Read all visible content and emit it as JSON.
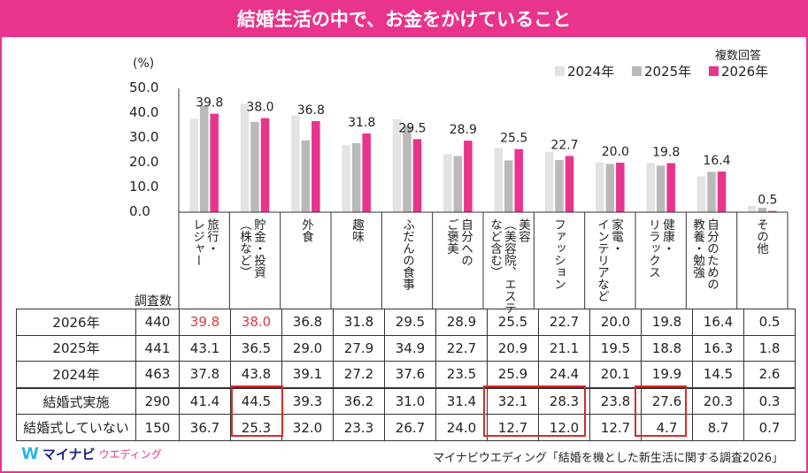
{
  "title": "結婚生活の中で、お金をかけていること",
  "unit_label": "(%)",
  "multiple_answer_note": "複数回答",
  "sample_header": "調査数",
  "colors": {
    "brand": "#e8348c",
    "y2024": "#e3e3e3",
    "y2025": "#b9b9b9",
    "y2026": "#e8348c",
    "highlight": "#d82b2b"
  },
  "chart_data": {
    "type": "bar",
    "title": "結婚生活の中で、お金をかけていること",
    "ylabel": "(%)",
    "ylim": [
      0,
      50
    ],
    "yticks": [
      "50.0",
      "40.0",
      "30.0",
      "20.0",
      "10.0",
      "0.0"
    ],
    "categories": [
      "旅行・レジャー",
      "貯金・投資（株など）",
      "外食",
      "趣味",
      "ふだんの食事",
      "自分へのご褒美",
      "美容（美容院、エステなど含む）",
      "ファッション",
      "家電・インテリアなど",
      "健康・リラックス",
      "自分のための教養・勉強",
      "その他"
    ],
    "series": [
      {
        "name": "2024年",
        "values": [
          37.8,
          43.8,
          39.1,
          27.2,
          37.6,
          23.5,
          25.9,
          24.4,
          20.1,
          19.9,
          14.5,
          2.6
        ]
      },
      {
        "name": "2025年",
        "values": [
          43.1,
          36.5,
          29.0,
          27.9,
          34.9,
          22.7,
          20.9,
          21.1,
          19.5,
          18.8,
          16.3,
          1.8
        ]
      },
      {
        "name": "2026年",
        "values": [
          39.8,
          38.0,
          36.8,
          31.8,
          29.5,
          28.9,
          25.5,
          22.7,
          20.0,
          19.8,
          16.4,
          0.5
        ]
      }
    ],
    "data_labels": [
      "39.8",
      "38.0",
      "36.8",
      "31.8",
      "29.5",
      "28.9",
      "25.5",
      "22.7",
      "20.0",
      "19.8",
      "16.4",
      "0.5"
    ],
    "legend": [
      "2024年",
      "2025年",
      "2026年"
    ]
  },
  "column_headers": [
    "旅行・\nレジャー",
    "貯金・投資\n（株など）",
    "外食",
    "趣味",
    "ふだんの食事",
    "自分への\nご褒美",
    "美容\n（美容院、エステ\nなど含む）",
    "ファッション",
    "家電・\nインテリアなど",
    "健康・\nリラックス",
    "自分のための\n教養・勉強",
    "その他"
  ],
  "table": {
    "rows": [
      {
        "label": "2026年",
        "n": "440",
        "values": [
          "39.8",
          "38.0",
          "36.8",
          "31.8",
          "29.5",
          "28.9",
          "25.5",
          "22.7",
          "20.0",
          "19.8",
          "16.4",
          "0.5"
        ]
      },
      {
        "label": "2025年",
        "n": "441",
        "values": [
          "43.1",
          "36.5",
          "29.0",
          "27.9",
          "34.9",
          "22.7",
          "20.9",
          "21.1",
          "19.5",
          "18.8",
          "16.3",
          "1.8"
        ]
      },
      {
        "label": "2024年",
        "n": "463",
        "values": [
          "37.8",
          "43.8",
          "39.1",
          "27.2",
          "37.6",
          "23.5",
          "25.9",
          "24.4",
          "20.1",
          "19.9",
          "14.5",
          "2.6"
        ]
      },
      {
        "label": "結婚式実施",
        "n": "290",
        "values": [
          "41.4",
          "44.5",
          "39.3",
          "36.2",
          "31.0",
          "31.4",
          "32.1",
          "28.3",
          "23.8",
          "27.6",
          "20.3",
          "0.3"
        ]
      },
      {
        "label": "結婚式していない",
        "n": "150",
        "values": [
          "36.7",
          "25.3",
          "32.0",
          "23.3",
          "26.7",
          "24.0",
          "12.7",
          "12.0",
          "12.7",
          "4.7",
          "8.7",
          "0.7"
        ]
      }
    ]
  },
  "logo": {
    "name": "マイナビ",
    "suffix": "ウエディング",
    "mark": "W"
  },
  "source": "マイナビウエディング「結婚を機とした新生活に関する調査2026」"
}
